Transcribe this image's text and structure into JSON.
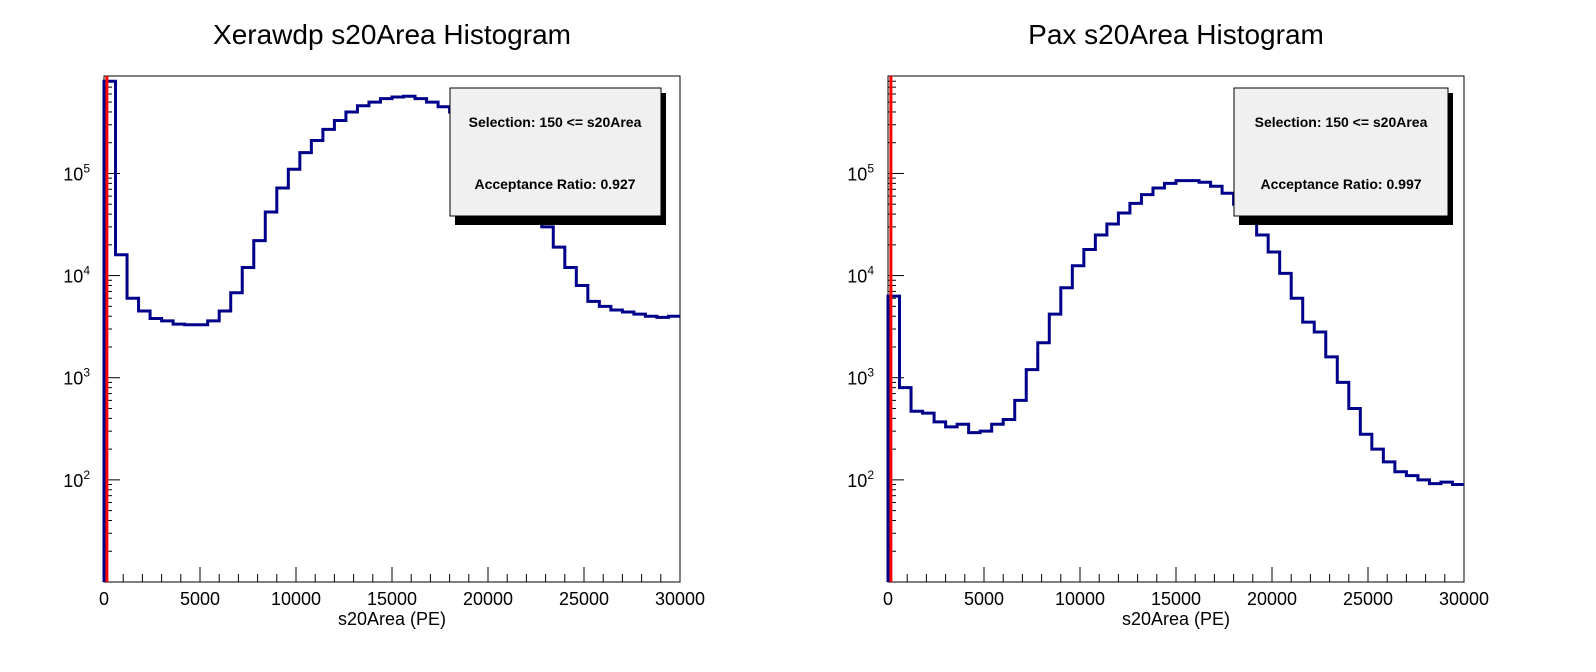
{
  "chart_data": [
    {
      "type": "histogram",
      "title": "Xerawdp s20Area Histogram",
      "xlabel": "s20Area (PE)",
      "ylabel": "",
      "xlim": [
        0,
        30000
      ],
      "ylim": [
        10,
        900000
      ],
      "yscale": "log",
      "x_ticks": [
        0,
        5000,
        10000,
        15000,
        20000,
        25000,
        30000
      ],
      "y_ticks": [
        100,
        1000,
        10000,
        100000
      ],
      "y_tick_labels": [
        {
          "base": "10",
          "exp": "2"
        },
        {
          "base": "10",
          "exp": "3"
        },
        {
          "base": "10",
          "exp": "4"
        },
        {
          "base": "10",
          "exp": "5"
        }
      ],
      "bin_width": 600,
      "values": [
        800000,
        16000,
        6000,
        4500,
        3800,
        3600,
        3350,
        3300,
        3300,
        3600,
        4500,
        6800,
        12000,
        22000,
        42000,
        72000,
        110000,
        160000,
        210000,
        270000,
        330000,
        400000,
        460000,
        500000,
        540000,
        560000,
        570000,
        540000,
        500000,
        450000,
        400000,
        330000,
        260000,
        200000,
        150000,
        100000,
        70000,
        45000,
        30000,
        19000,
        12000,
        8000,
        5600,
        5000,
        4600,
        4400,
        4200,
        4000,
        3900,
        4000
      ],
      "cut_x": 150,
      "stats_box": {
        "selection": "Selection: 150 <= s20Area",
        "acceptance": "Acceptance Ratio: 0.927"
      },
      "colors": {
        "histogram": "#00008b",
        "cut_line": "#ff0000",
        "stats_fill": "#f0f0f0"
      },
      "grid": false
    },
    {
      "type": "histogram",
      "title": "Pax s20Area Histogram",
      "xlabel": "s20Area (PE)",
      "ylabel": "",
      "xlim": [
        0,
        30000
      ],
      "ylim": [
        10,
        900000
      ],
      "yscale": "log",
      "x_ticks": [
        0,
        5000,
        10000,
        15000,
        20000,
        25000,
        30000
      ],
      "y_ticks": [
        100,
        1000,
        10000,
        100000
      ],
      "y_tick_labels": [
        {
          "base": "10",
          "exp": "2"
        },
        {
          "base": "10",
          "exp": "3"
        },
        {
          "base": "10",
          "exp": "4"
        },
        {
          "base": "10",
          "exp": "5"
        }
      ],
      "bin_width": 600,
      "values": [
        6300,
        800,
        470,
        450,
        370,
        330,
        350,
        290,
        300,
        350,
        390,
        600,
        1200,
        2200,
        4200,
        7600,
        12500,
        18000,
        25000,
        32000,
        41000,
        51000,
        62000,
        72000,
        80000,
        85000,
        85000,
        82000,
        75000,
        64000,
        50000,
        37000,
        25000,
        17000,
        10500,
        6000,
        3500,
        2800,
        1600,
        900,
        500,
        280,
        200,
        150,
        120,
        110,
        100,
        92,
        95,
        90
      ],
      "cut_x": 150,
      "stats_box": {
        "selection": "Selection: 150 <= s20Area",
        "acceptance": "Acceptance Ratio: 0.997"
      },
      "colors": {
        "histogram": "#00008b",
        "cut_line": "#ff0000",
        "stats_fill": "#f0f0f0"
      },
      "grid": false
    }
  ]
}
